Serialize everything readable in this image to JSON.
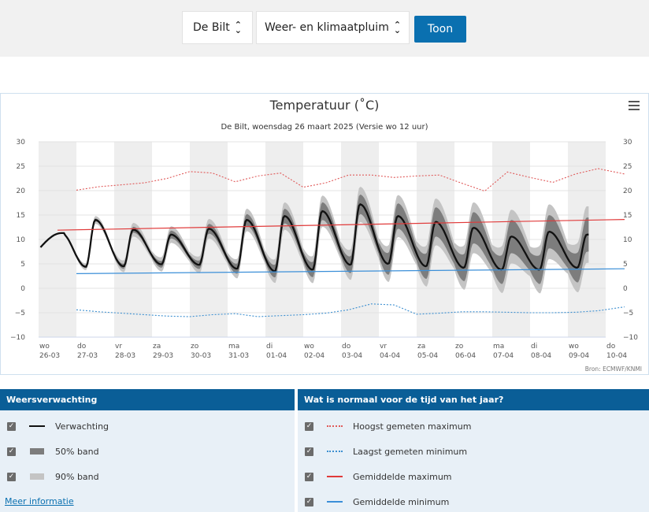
{
  "controls": {
    "location": "De Bilt",
    "product": "Weer- en klimaatpluim",
    "button": "Toon"
  },
  "chart_data": {
    "type": "line",
    "title": "Temperatuur (˚C)",
    "subtitle": "De Bilt, woensdag 26 maart 2025 (Versie wo 12 uur)",
    "credit": "Bron: ECMWF/KNMI",
    "ylim": [
      -10,
      30
    ],
    "yticks": [
      "30",
      "25",
      "20",
      "15",
      "10",
      "5",
      "0",
      "−5",
      "−10"
    ],
    "yticks_right": [
      "30",
      "25",
      "20",
      "15",
      "10",
      "5",
      "0",
      "−5",
      "−10"
    ],
    "x_days": [
      {
        "day": "wo",
        "date": "26-03"
      },
      {
        "day": "do",
        "date": "27-03"
      },
      {
        "day": "vr",
        "date": "28-03"
      },
      {
        "day": "za",
        "date": "29-03"
      },
      {
        "day": "zo",
        "date": "30-03"
      },
      {
        "day": "ma",
        "date": "31-03"
      },
      {
        "day": "di",
        "date": "01-04"
      },
      {
        "day": "wo",
        "date": "02-04"
      },
      {
        "day": "do",
        "date": "03-04"
      },
      {
        "day": "vr",
        "date": "04-04"
      },
      {
        "day": "za",
        "date": "05-04"
      },
      {
        "day": "zo",
        "date": "06-04"
      },
      {
        "day": "ma",
        "date": "07-04"
      },
      {
        "day": "di",
        "date": "08-04"
      },
      {
        "day": "wo",
        "date": "09-04"
      },
      {
        "day": "do",
        "date": "10-04"
      }
    ],
    "forecast_day_max": [
      11.3,
      14.0,
      12.0,
      11.0,
      12.2,
      14.0,
      14.8,
      15.8,
      17.2,
      14.8,
      13.6,
      12.4,
      10.6,
      11.6,
      11.0
    ],
    "forecast_day_min": [
      1.7,
      4.4,
      4.5,
      4.9,
      4.8,
      4.0,
      3.5,
      3.8,
      4.8,
      5.0,
      4.5,
      4.2,
      3.8,
      3.8,
      4.2
    ],
    "band50_halfwidth": [
      0.0,
      0.3,
      0.6,
      0.8,
      1.0,
      1.2,
      1.5,
      1.8,
      2.0,
      2.6,
      3.0,
      3.2,
      3.4,
      3.4,
      3.5
    ],
    "band90_halfwidth": [
      0.0,
      0.8,
      1.4,
      1.7,
      2.0,
      2.3,
      2.8,
      3.2,
      3.6,
      4.3,
      4.8,
      5.2,
      5.5,
      5.6,
      5.8
    ],
    "record_max": {
      "x": [
        1,
        1.6,
        2.2,
        2.8,
        3.4,
        4.0,
        4.6,
        5.2,
        5.8,
        6.4,
        7.0,
        7.6,
        8.2,
        8.8,
        9.4,
        10.0,
        10.6,
        11.2,
        11.8,
        12.4,
        13.0,
        13.6,
        14.2,
        14.8,
        15.5
      ],
      "y": [
        20.1,
        20.8,
        21.2,
        21.6,
        22.5,
        23.9,
        23.6,
        21.8,
        23.0,
        23.6,
        20.7,
        21.6,
        23.2,
        23.2,
        22.7,
        23.0,
        23.2,
        21.5,
        19.9,
        23.8,
        22.7,
        21.7,
        23.4,
        24.5,
        23.4
      ]
    },
    "record_min": {
      "x": [
        1,
        1.6,
        2.2,
        2.8,
        3.4,
        4.0,
        4.6,
        5.2,
        5.8,
        6.4,
        7.0,
        7.6,
        8.2,
        8.8,
        9.4,
        10.0,
        10.6,
        11.2,
        11.8,
        12.4,
        13.0,
        13.6,
        14.2,
        14.8,
        15.5
      ],
      "y": [
        -4.4,
        -4.8,
        -5.1,
        -5.4,
        -5.7,
        -5.8,
        -5.4,
        -5.2,
        -5.8,
        -5.6,
        -5.4,
        -5.1,
        -4.4,
        -3.2,
        -3.4,
        -5.3,
        -5.1,
        -4.8,
        -4.8,
        -4.9,
        -5.0,
        -5.0,
        -4.9,
        -4.6,
        -3.8
      ]
    },
    "mean_max": {
      "x": [
        0.5,
        15.5
      ],
      "y": [
        11.9,
        14.1
      ]
    },
    "mean_min": {
      "x": [
        1,
        15.5
      ],
      "y": [
        3.0,
        4.0
      ]
    },
    "colors": {
      "forecast": "#111111",
      "band50": "#7d7d7d",
      "band90": "#c4c4c4",
      "record_max": "#e05a5a",
      "record_min": "#3c8fd0",
      "mean_max": "#e03a3a",
      "mean_min": "#3b8fd8",
      "stripe": "#eeeeee"
    }
  },
  "legend_left": {
    "header": "Weersverwachting",
    "items": [
      "Verwachting",
      "50% band",
      "90% band"
    ],
    "link": "Meer informatie"
  },
  "legend_right": {
    "header": "Wat is normaal voor de tijd van het jaar?",
    "items": [
      "Hoogst gemeten maximum",
      "Laagst gemeten minimum",
      "Gemiddelde maximum",
      "Gemiddelde minimum"
    ]
  }
}
